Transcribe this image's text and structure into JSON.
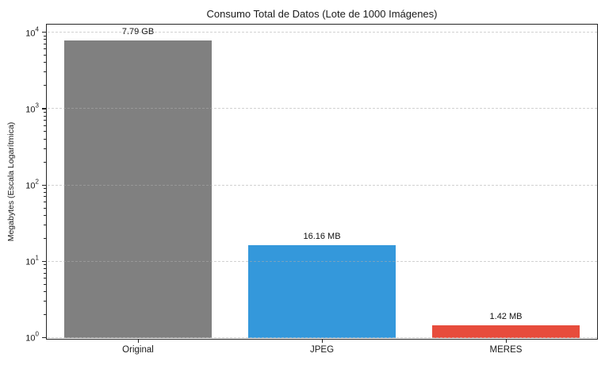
{
  "chart_data": {
    "type": "bar",
    "title": "Consumo Total de Datos (Lote de 1000 Imágenes)",
    "xlabel": "",
    "ylabel": "Megabytes (Escala Logarítmica)",
    "yscale": "log",
    "ylim": [
      0.93,
      12750
    ],
    "categories": [
      "Original",
      "JPEG",
      "MERES"
    ],
    "values_mb": [
      7790,
      16.16,
      1.42
    ],
    "bar_labels": [
      "7.79 GB",
      "16.16 MB",
      "1.42 MB"
    ],
    "bar_colors": [
      "#808080",
      "#3498db",
      "#e74c3c"
    ],
    "ytick_exponents": [
      0,
      1,
      2,
      3,
      4
    ],
    "ytick_base": "10",
    "bar_width_fraction": 0.8,
    "grid": {
      "axis": "y",
      "style": "dashed",
      "on": true
    },
    "legend": "none"
  }
}
